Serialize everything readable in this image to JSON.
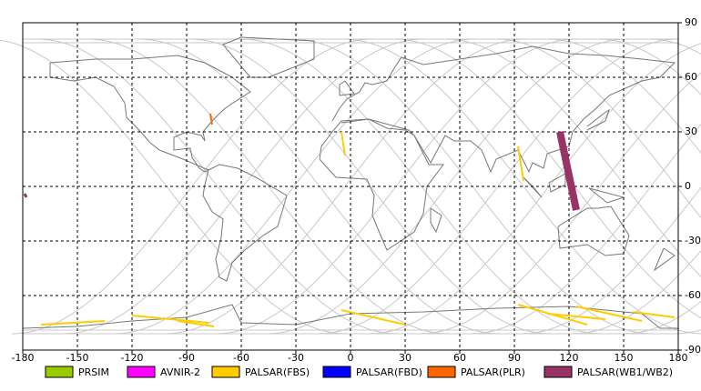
{
  "map": {
    "xlim": [
      -180,
      180
    ],
    "ylim": [
      -90,
      90
    ],
    "xticks": [
      -180,
      -150,
      -120,
      -90,
      -60,
      -30,
      0,
      30,
      60,
      90,
      120,
      150,
      180
    ],
    "yticks": [
      -90,
      -60,
      -30,
      0,
      30,
      60,
      90
    ],
    "grid": true
  },
  "legend": [
    {
      "label": "PRSIM",
      "color": "#99cc00"
    },
    {
      "label": "AVNIR-2",
      "color": "#ff00ff"
    },
    {
      "label": "PALSAR(FBS)",
      "color": "#ffcc00"
    },
    {
      "label": "PALSAR(FBD)",
      "color": "#0000ff"
    },
    {
      "label": "PALSAR(PLR)",
      "color": "#ff6600"
    },
    {
      "label": "PALSAR(WB1/WB2)",
      "color": "#993366"
    }
  ]
}
